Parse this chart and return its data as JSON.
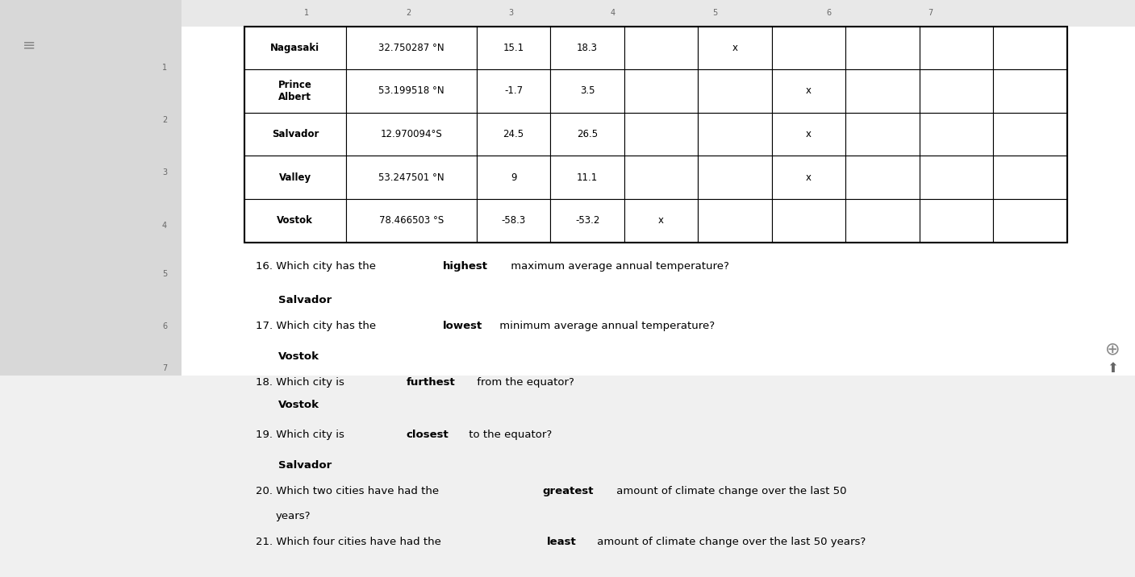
{
  "table": {
    "rows": [
      [
        "Nagasaki",
        "32.750287 °N",
        "15.1",
        "18.3",
        "",
        "x",
        "",
        "",
        "",
        ""
      ],
      [
        "Prince\nAlbert",
        "53.199518 °N",
        "-1.7",
        "3.5",
        "",
        "",
        "x",
        "",
        "",
        ""
      ],
      [
        "Salvador",
        "12.970094°S",
        "24.5",
        "26.5",
        "",
        "",
        "x",
        "",
        "",
        ""
      ],
      [
        "Valley",
        "53.247501 °N",
        "9",
        "11.1",
        "",
        "",
        "x",
        "",
        "",
        ""
      ],
      [
        "Vostok",
        "78.466503 °S",
        "-58.3",
        "-53.2",
        "x",
        "",
        "",
        "",
        "",
        ""
      ]
    ]
  },
  "questions": [
    {
      "number": "16.",
      "text_before": "Which city has the ",
      "bold_word": "highest",
      "text_after": " maximum average annual temperature?"
    },
    {
      "answer_16": "Salvador"
    },
    {
      "number": "17.",
      "text_before": "Which city has the ",
      "bold_word": "lowest",
      "text_after": " minimum average annual temperature?"
    },
    {
      "answer_17": "Vostok"
    },
    {
      "number": "18.",
      "text_before": "Which city is ",
      "bold_word": "furthest",
      "text_after": " from the equator?"
    },
    {
      "answer_18": "Vostok"
    },
    {
      "number": "19.",
      "text_before": "Which city is ",
      "bold_word": "closest",
      "text_after": " to the equator?"
    },
    {
      "answer_19": "Salvador"
    },
    {
      "number": "20.",
      "text_before": "Which two cities have had the ",
      "bold_word": "greatest",
      "text_after": " amount of climate change over the last 50\n      years?"
    },
    {
      "number": "21.",
      "text_before": "Which four cities have had the ",
      "bold_word": "least",
      "text_after": " amount of climate change over the last 50 years?"
    }
  ],
  "bg_color": "#f0f0f0",
  "page_color": "#ffffff",
  "ruler_color": "#e8e8e8",
  "table_border_color": "#000000",
  "text_color": "#000000",
  "answer_color": "#1a1a1a"
}
